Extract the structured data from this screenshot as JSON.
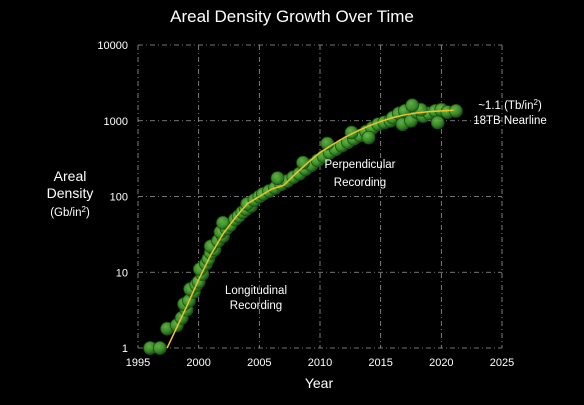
{
  "chart_data": {
    "type": "scatter",
    "title": "Areal Density Growth Over Time",
    "xlabel": "Year",
    "ylabel_lines": [
      "Areal",
      "Density"
    ],
    "ylabel_unit_base": "(Gb/in",
    "ylabel_unit_sup": "2",
    "ylabel_unit_end": ")",
    "xlim": [
      1995,
      2025
    ],
    "ylim": [
      1,
      10000
    ],
    "yscale": "log",
    "grid": true,
    "x_ticks": [
      1995,
      2000,
      2005,
      2010,
      2015,
      2020,
      2025
    ],
    "y_ticks": [
      1,
      10,
      100,
      1000,
      10000
    ],
    "colors": {
      "background": "#000000",
      "point": "#3f9a2c",
      "point_edge": "#1d4f14",
      "trend": "#f2c12e",
      "grid": "#9a9a9a"
    },
    "series": [
      {
        "values": [
          [
            1996.0,
            1.0
          ],
          [
            1996.8,
            1.0
          ],
          [
            1997.4,
            1.8
          ],
          [
            1998.2,
            2.0
          ],
          [
            1998.6,
            2.5
          ],
          [
            1999.0,
            3.2
          ],
          [
            1998.8,
            3.8
          ],
          [
            1999.2,
            4.2
          ],
          [
            1999.6,
            5.5
          ],
          [
            1999.3,
            6.0
          ],
          [
            1999.8,
            6.8
          ],
          [
            2000.0,
            7.5
          ],
          [
            2000.3,
            9.5
          ],
          [
            2000.1,
            11.0
          ],
          [
            2000.6,
            13.0
          ],
          [
            2000.8,
            15.0
          ],
          [
            2001.0,
            18.0
          ],
          [
            2001.3,
            20.0
          ],
          [
            2001.0,
            22.0
          ],
          [
            2001.6,
            26.0
          ],
          [
            2002.0,
            30.0
          ],
          [
            2001.8,
            34.0
          ],
          [
            2002.3,
            38.0
          ],
          [
            2002.6,
            42.0
          ],
          [
            2002.0,
            45.0
          ],
          [
            2003.0,
            50.0
          ],
          [
            2003.3,
            55.0
          ],
          [
            2003.6,
            62.0
          ],
          [
            2003.9,
            68.0
          ],
          [
            2004.3,
            75.0
          ],
          [
            2004.0,
            80.0
          ],
          [
            2004.6,
            90.0
          ],
          [
            2005.0,
            100.0
          ],
          [
            2005.3,
            108.0
          ],
          [
            2005.8,
            118.0
          ],
          [
            2006.3,
            130.0
          ],
          [
            2006.8,
            145.0
          ],
          [
            2007.3,
            160.0
          ],
          [
            2006.5,
            175.0
          ],
          [
            2007.8,
            180.0
          ],
          [
            2008.3,
            200.0
          ],
          [
            2008.8,
            230.0
          ],
          [
            2009.3,
            260.0
          ],
          [
            2008.6,
            280.0
          ],
          [
            2009.8,
            300.0
          ],
          [
            2010.3,
            340.0
          ],
          [
            2010.8,
            380.0
          ],
          [
            2011.3,
            420.0
          ],
          [
            2011.8,
            470.0
          ],
          [
            2010.6,
            500.0
          ],
          [
            2012.3,
            520.0
          ],
          [
            2012.8,
            580.0
          ],
          [
            2013.3,
            640.0
          ],
          [
            2012.6,
            700.0
          ],
          [
            2013.8,
            720.0
          ],
          [
            2014.3,
            800.0
          ],
          [
            2014.8,
            900.0
          ],
          [
            2015.3,
            950.0
          ],
          [
            2014.0,
            600.0
          ],
          [
            2015.8,
            1000.0
          ],
          [
            2016.0,
            1100.0
          ],
          [
            2016.5,
            1250.0
          ],
          [
            2017.0,
            1350.0
          ],
          [
            2016.8,
            900.0
          ],
          [
            2017.5,
            1000.0
          ],
          [
            2018.0,
            1300.0
          ],
          [
            2018.5,
            1150.0
          ],
          [
            2019.0,
            1250.0
          ],
          [
            2018.3,
            1400.0
          ],
          [
            2019.5,
            1350.0
          ],
          [
            2020.0,
            1400.0
          ],
          [
            2019.7,
            950.0
          ],
          [
            2017.6,
            1600.0
          ],
          [
            2020.5,
            1300.0
          ],
          [
            2021.2,
            1350.0
          ]
        ]
      }
    ],
    "trend": [
      [
        1997.4,
        1.0
      ],
      [
        1998.0,
        1.6
      ],
      [
        1999.0,
        3.5
      ],
      [
        2000.0,
        8.0
      ],
      [
        2001.0,
        17.0
      ],
      [
        2002.0,
        32.0
      ],
      [
        2003.0,
        52.0
      ],
      [
        2004.0,
        80.0
      ],
      [
        2005.0,
        100.0
      ],
      [
        2006.0,
        125.0
      ],
      [
        2007.0,
        140.0
      ],
      [
        2008.0,
        200.0
      ],
      [
        2009.0,
        280.0
      ],
      [
        2010.0,
        380.0
      ],
      [
        2011.0,
        480.0
      ],
      [
        2012.0,
        600.0
      ],
      [
        2013.0,
        720.0
      ],
      [
        2014.0,
        850.0
      ],
      [
        2015.0,
        980.0
      ],
      [
        2016.0,
        1100.0
      ],
      [
        2017.0,
        1200.0
      ],
      [
        2018.0,
        1270.0
      ],
      [
        2019.0,
        1320.0
      ],
      [
        2020.0,
        1350.0
      ],
      [
        2021.0,
        1380.0
      ]
    ],
    "annotations": {
      "areal_main": "~1.1 (Tb/in",
      "areal_sup": "2",
      "areal_end": ")",
      "nearline": "18TB Nearline",
      "perpendicular_1": "Perpendicular",
      "perpendicular_2": "Recording",
      "longitudinal_1": "Longitudinal",
      "longitudinal_2": "Recording"
    }
  }
}
